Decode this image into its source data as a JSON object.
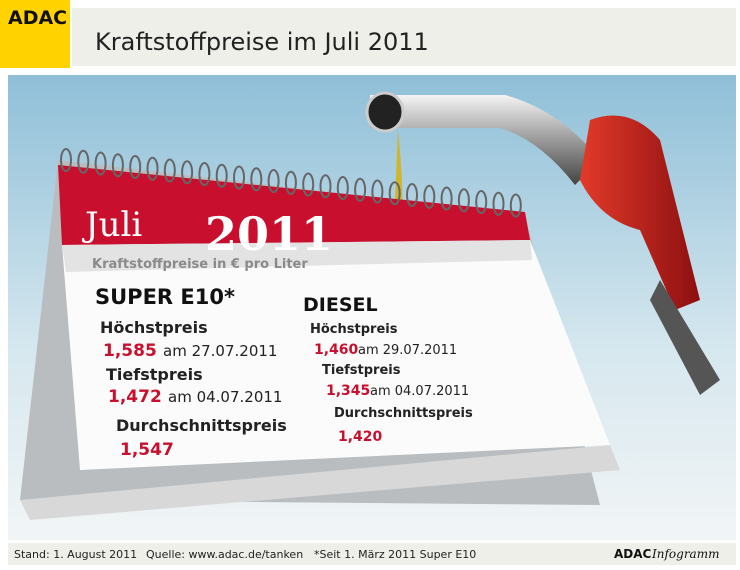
{
  "header": {
    "logo": "ADAC",
    "title": "Kraftstoffpreise im Juli 2011"
  },
  "calendar": {
    "month": "Juli",
    "year": "2011",
    "subtitle": "Kraftstoffpreise in € pro Liter",
    "super": {
      "name": "SUPER E10*",
      "items": [
        {
          "label": "Höchstpreis",
          "price": "1,585",
          "date": "am 27.07.2011"
        },
        {
          "label": "Tiefstpreis",
          "price": "1,472",
          "date": "am 04.07.2011"
        },
        {
          "label": "Durchschnittspreis",
          "price": "1,547"
        }
      ]
    },
    "diesel": {
      "name": "DIESEL",
      "items": [
        {
          "label": "Höchstpreis",
          "price": "1,460",
          "date": "am 29.07.2011"
        },
        {
          "label": "Tiefstpreis",
          "price": "1,345",
          "date": "am 04.07.2011"
        },
        {
          "label": "Durchschnittspreis",
          "price": "1,420"
        }
      ]
    }
  },
  "footer": {
    "stand": "Stand: 1. August 2011",
    "source": "Quelle: www.adac.de/tanken",
    "note": "*Seit 1. März 2011 Super E10",
    "brand": "ADAC",
    "brand_suffix": "Infogramm"
  }
}
